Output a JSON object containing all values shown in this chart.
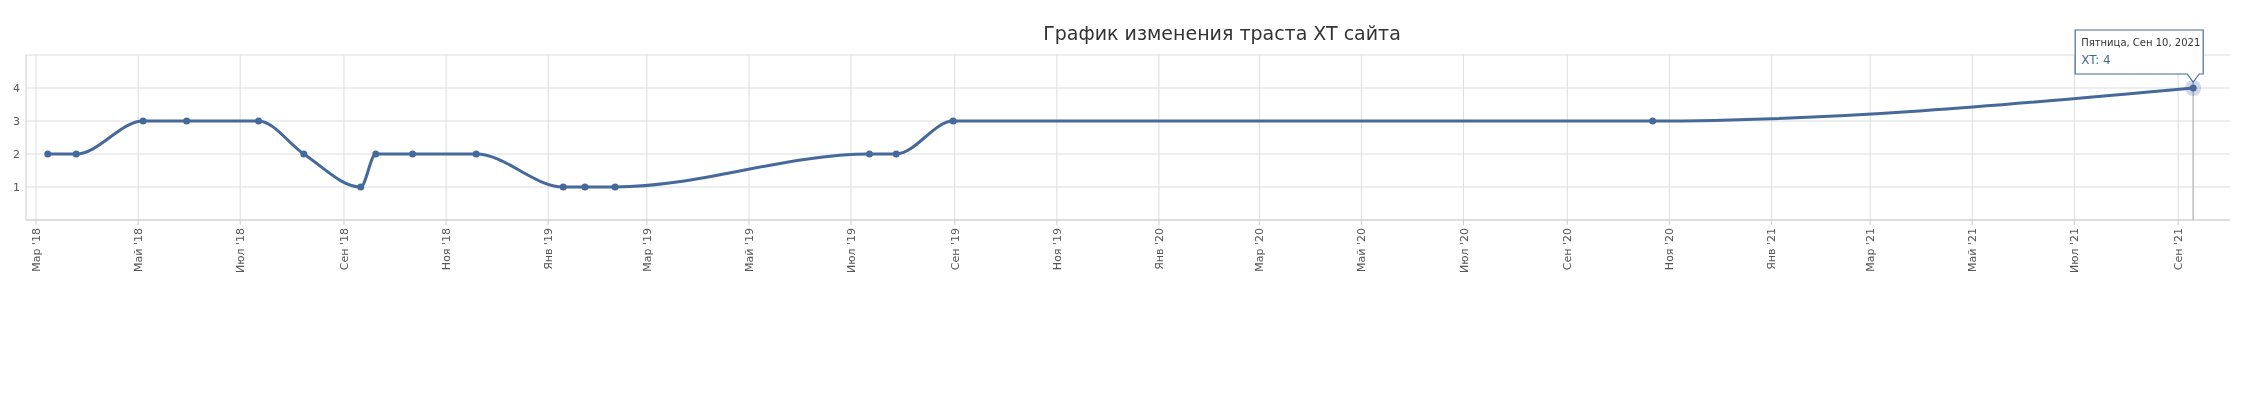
{
  "chart_data": {
    "type": "line",
    "title": "График изменения траста XT сайта",
    "x": [
      "2018-03-08",
      "2018-03-25",
      "2018-05-04",
      "2018-05-30",
      "2018-07-12",
      "2018-08-08",
      "2018-09-11",
      "2018-09-20",
      "2018-10-12",
      "2018-11-19",
      "2019-01-10",
      "2019-01-23",
      "2019-02-10",
      "2019-07-12",
      "2019-07-28",
      "2019-08-31",
      "2020-10-22",
      "2021-09-10"
    ],
    "series": [
      {
        "color": "#46699c",
        "values": [
          2,
          2,
          3,
          3,
          3,
          2,
          1,
          2,
          2,
          2,
          1,
          1,
          1,
          2,
          2,
          3,
          3,
          4
        ]
      }
    ],
    "xlim": [
      "2018-02-23",
      "2021-10-02"
    ],
    "xticks": [
      {
        "value": "2018-03-01",
        "label": "Мар '18"
      },
      {
        "value": "2018-05-01",
        "label": "Май '18"
      },
      {
        "value": "2018-07-01",
        "label": "Июл '18"
      },
      {
        "value": "2018-09-01",
        "label": "Сен '18"
      },
      {
        "value": "2018-11-01",
        "label": "Ноя '18"
      },
      {
        "value": "2019-01-01",
        "label": "Янв '19"
      },
      {
        "value": "2019-03-01",
        "label": "Мар '19"
      },
      {
        "value": "2019-05-01",
        "label": "Май '19"
      },
      {
        "value": "2019-07-01",
        "label": "Июл '19"
      },
      {
        "value": "2019-09-01",
        "label": "Сен '19"
      },
      {
        "value": "2019-11-01",
        "label": "Ноя '19"
      },
      {
        "value": "2020-01-01",
        "label": "Янв '20"
      },
      {
        "value": "2020-03-01",
        "label": "Мар '20"
      },
      {
        "value": "2020-05-01",
        "label": "Май '20"
      },
      {
        "value": "2020-07-01",
        "label": "Июл '20"
      },
      {
        "value": "2020-09-01",
        "label": "Сен '20"
      },
      {
        "value": "2020-11-01",
        "label": "Ноя '20"
      },
      {
        "value": "2021-01-01",
        "label": "Янв '21"
      },
      {
        "value": "2021-03-01",
        "label": "Мар '21"
      },
      {
        "value": "2021-05-01",
        "label": "Май '21"
      },
      {
        "value": "2021-07-01",
        "label": "Июл '21"
      },
      {
        "value": "2021-09-01",
        "label": "Сен '21"
      }
    ],
    "ylim": [
      0,
      5
    ],
    "yticks": [
      {
        "value": 0,
        "label": null
      },
      1,
      2,
      3,
      4,
      {
        "value": 5,
        "label": null
      }
    ],
    "annotations": [
      "Пятница, Сен 10, 2021",
      "XT: 4"
    ],
    "ref_lines": [
      {
        "axis": "x",
        "value": "2021-09-10",
        "color": "#bbbbbb"
      }
    ],
    "grid": true,
    "marker": "circle",
    "line_style": "solid"
  }
}
